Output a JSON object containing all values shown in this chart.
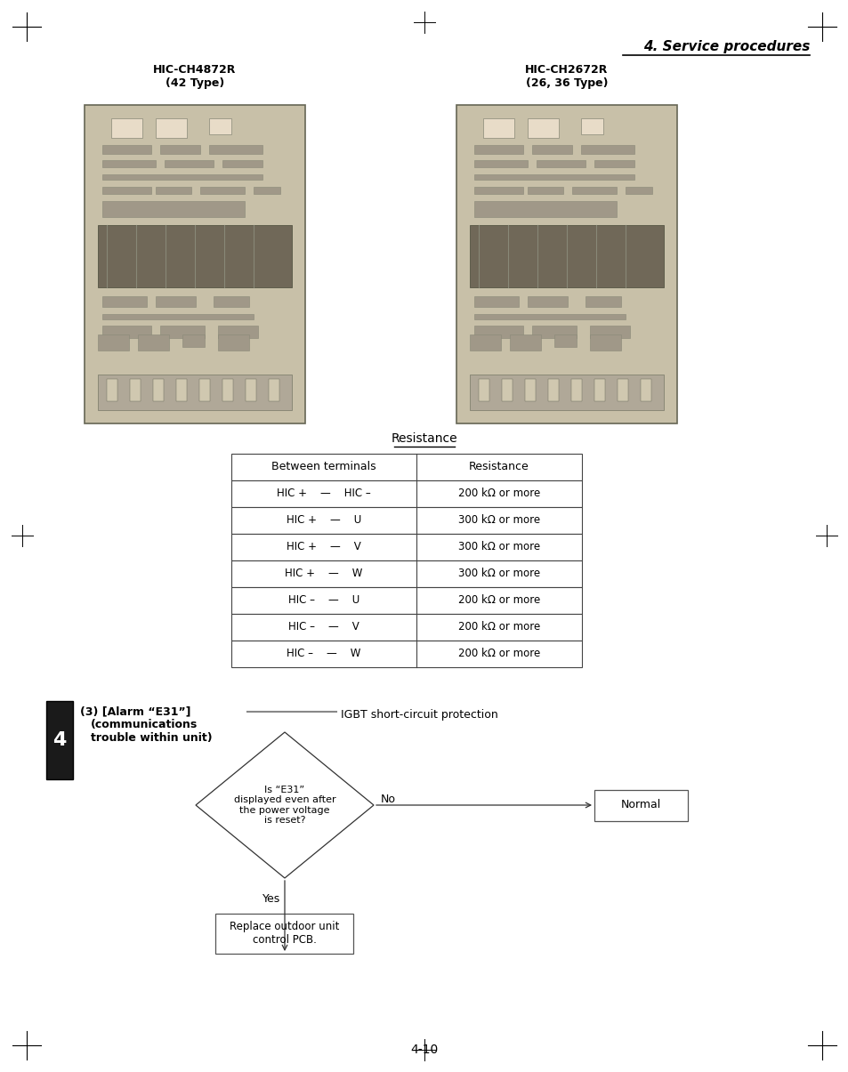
{
  "page_title": "4. Service procedures",
  "page_number": "4-10",
  "section_label": "4",
  "img1_label_line1": "HIC-CH4872R",
  "img1_label_line2": "(42 Type)",
  "img2_label_line1": "HIC-CH2672R",
  "img2_label_line2": "(26, 36 Type)",
  "table_title": "Resistance",
  "table_headers": [
    "Between terminals",
    "Resistance"
  ],
  "table_rows": [
    [
      "HIC +    —    HIC –",
      "200 kΩ or more"
    ],
    [
      "HIC +    —    U",
      "300 kΩ or more"
    ],
    [
      "HIC +    —    V",
      "300 kΩ or more"
    ],
    [
      "HIC +    —    W",
      "300 kΩ or more"
    ],
    [
      "HIC –    —    U",
      "200 kΩ or more"
    ],
    [
      "HIC –    —    V",
      "200 kΩ or more"
    ],
    [
      "HIC –    —    W",
      "200 kΩ or more"
    ]
  ],
  "alarm_label_line1": "(3) [Alarm “E31”]",
  "alarm_label_line2": "(communications",
  "alarm_label_line3": "trouble within unit)",
  "igbt_label": "IGBT short-circuit protection",
  "diamond_text": "Is “E31”\ndisplayed even after\nthe power voltage\nis reset?",
  "no_label": "No",
  "yes_label": "Yes",
  "normal_box_text": "Normal",
  "replace_box_text": "Replace outdoor unit\ncontrol PCB.",
  "bg_color": "#ffffff",
  "text_color": "#000000",
  "table_border_color": "#444444",
  "section_bar_color": "#1a1a1a",
  "section_bar_text_color": "#ffffff",
  "pcb_bg_color": "#c8c0a8",
  "pcb_component_color": "#a09888",
  "pcb_dark_color": "#706858"
}
